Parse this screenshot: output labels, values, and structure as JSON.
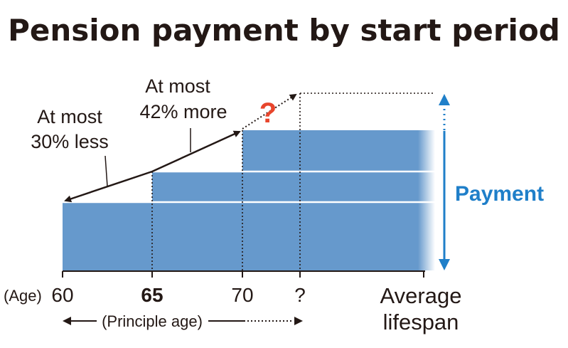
{
  "title": "Pension payment by start period",
  "annotations": {
    "less": [
      "At most",
      "30% less"
    ],
    "more": [
      "At most",
      "42% more"
    ],
    "question_mark": "?",
    "payment": "Payment"
  },
  "axis": {
    "prefix": "(Age)",
    "ticks": [
      "60",
      "65",
      "70",
      "?"
    ],
    "end_label": [
      "Average",
      "lifespan"
    ],
    "principle_age": "(Principle age)"
  },
  "colors": {
    "bar": "#6699cc",
    "accent_blue": "#1f7fc9",
    "question_red": "#e8452c",
    "ink": "#231815"
  }
}
